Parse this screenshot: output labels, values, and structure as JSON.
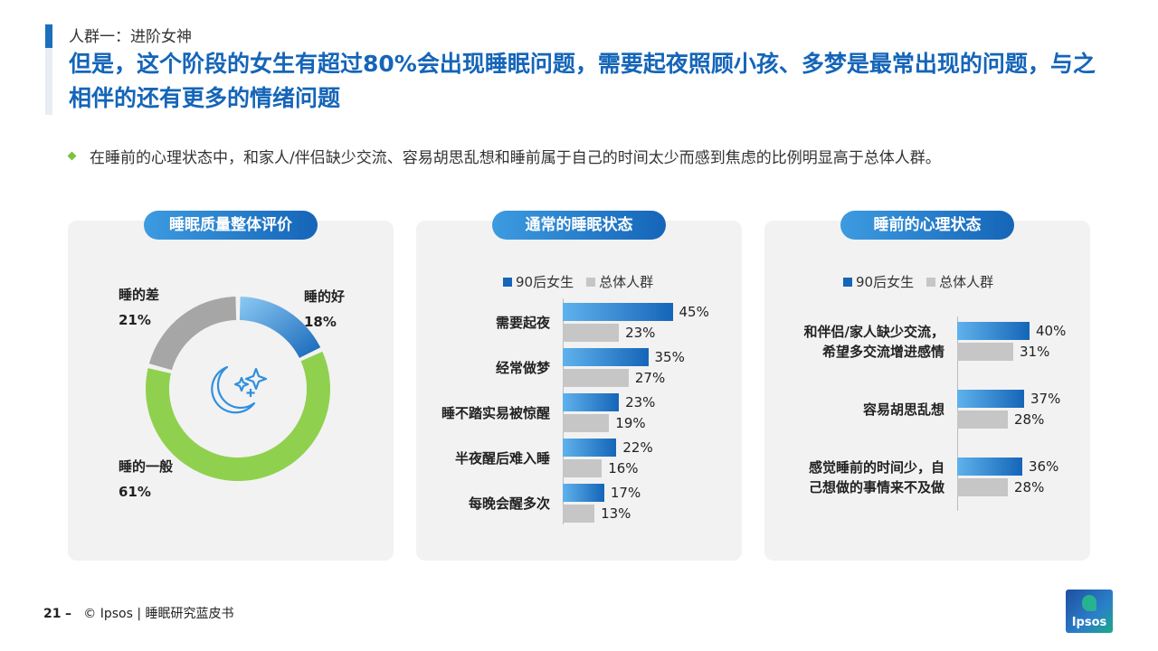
{
  "header": {
    "kicker": "人群一：进阶女神",
    "headline": "但是，这个阶段的女生有超过80%会出现睡眠问题，需要起夜照顾小孩、多梦是最常出现的问题，与之相伴的还有更多的情绪问题"
  },
  "bullet": "在睡前的心理状态中，和家人/伴侣缺少交流、容易胡思乱想和睡前属于自己的时间太少而感到焦虑的比例明显高于总体人群。",
  "panels": [
    {
      "title": "睡眠质量整体评价"
    },
    {
      "title": "通常的睡眠状态"
    },
    {
      "title": "睡前的心理状态"
    }
  ],
  "legend": {
    "primary": "90后女生",
    "secondary": "总体人群"
  },
  "colors": {
    "primary": "#1565b8",
    "primary_light": "#5fb2ec",
    "secondary": "#c6c6c6",
    "donut_good": "#2f8fde",
    "donut_mid": "#8fd14f",
    "donut_bad": "#a6a6a6"
  },
  "icons": {
    "donut_center": "moon-stars-icon"
  },
  "chart_data": [
    {
      "type": "pie",
      "title": "睡眠质量整体评价",
      "donut": true,
      "categories": [
        "睡的好",
        "睡的一般",
        "睡的差"
      ],
      "values": [
        18,
        61,
        21
      ],
      "labels": [
        "18%",
        "61%",
        "21%"
      ]
    },
    {
      "type": "bar",
      "orientation": "horizontal",
      "title": "通常的睡眠状态",
      "categories": [
        "需要起夜",
        "经常做梦",
        "睡不踏实易被惊醒",
        "半夜醒后难入睡",
        "每晚会醒多次"
      ],
      "series": [
        {
          "name": "90后女生",
          "values": [
            45,
            35,
            23,
            22,
            17
          ],
          "labels": [
            "45%",
            "35%",
            "23%",
            "22%",
            "17%"
          ]
        },
        {
          "name": "总体人群",
          "values": [
            23,
            27,
            19,
            16,
            13
          ],
          "labels": [
            "23%",
            "27%",
            "19%",
            "16%",
            "13%"
          ]
        }
      ],
      "legend_position": "top"
    },
    {
      "type": "bar",
      "orientation": "horizontal",
      "title": "睡前的心理状态",
      "categories": [
        [
          "和伴侣/家人缺少交流，",
          "希望多交流增进感情"
        ],
        [
          "容易胡思乱想"
        ],
        [
          "感觉睡前的时间少，自",
          "己想做的事情来不及做"
        ]
      ],
      "series": [
        {
          "name": "90后女生",
          "values": [
            40,
            37,
            36
          ],
          "labels": [
            "40%",
            "37%",
            "36%"
          ]
        },
        {
          "name": "总体人群",
          "values": [
            31,
            28,
            28
          ],
          "labels": [
            "31%",
            "28%",
            "28%"
          ]
        }
      ],
      "legend_position": "top"
    }
  ],
  "footer": {
    "page": "21",
    "dash": "–",
    "source": "© Ipsos | 睡眠研究蓝皮书"
  },
  "logo": {
    "text": "Ipsos"
  }
}
